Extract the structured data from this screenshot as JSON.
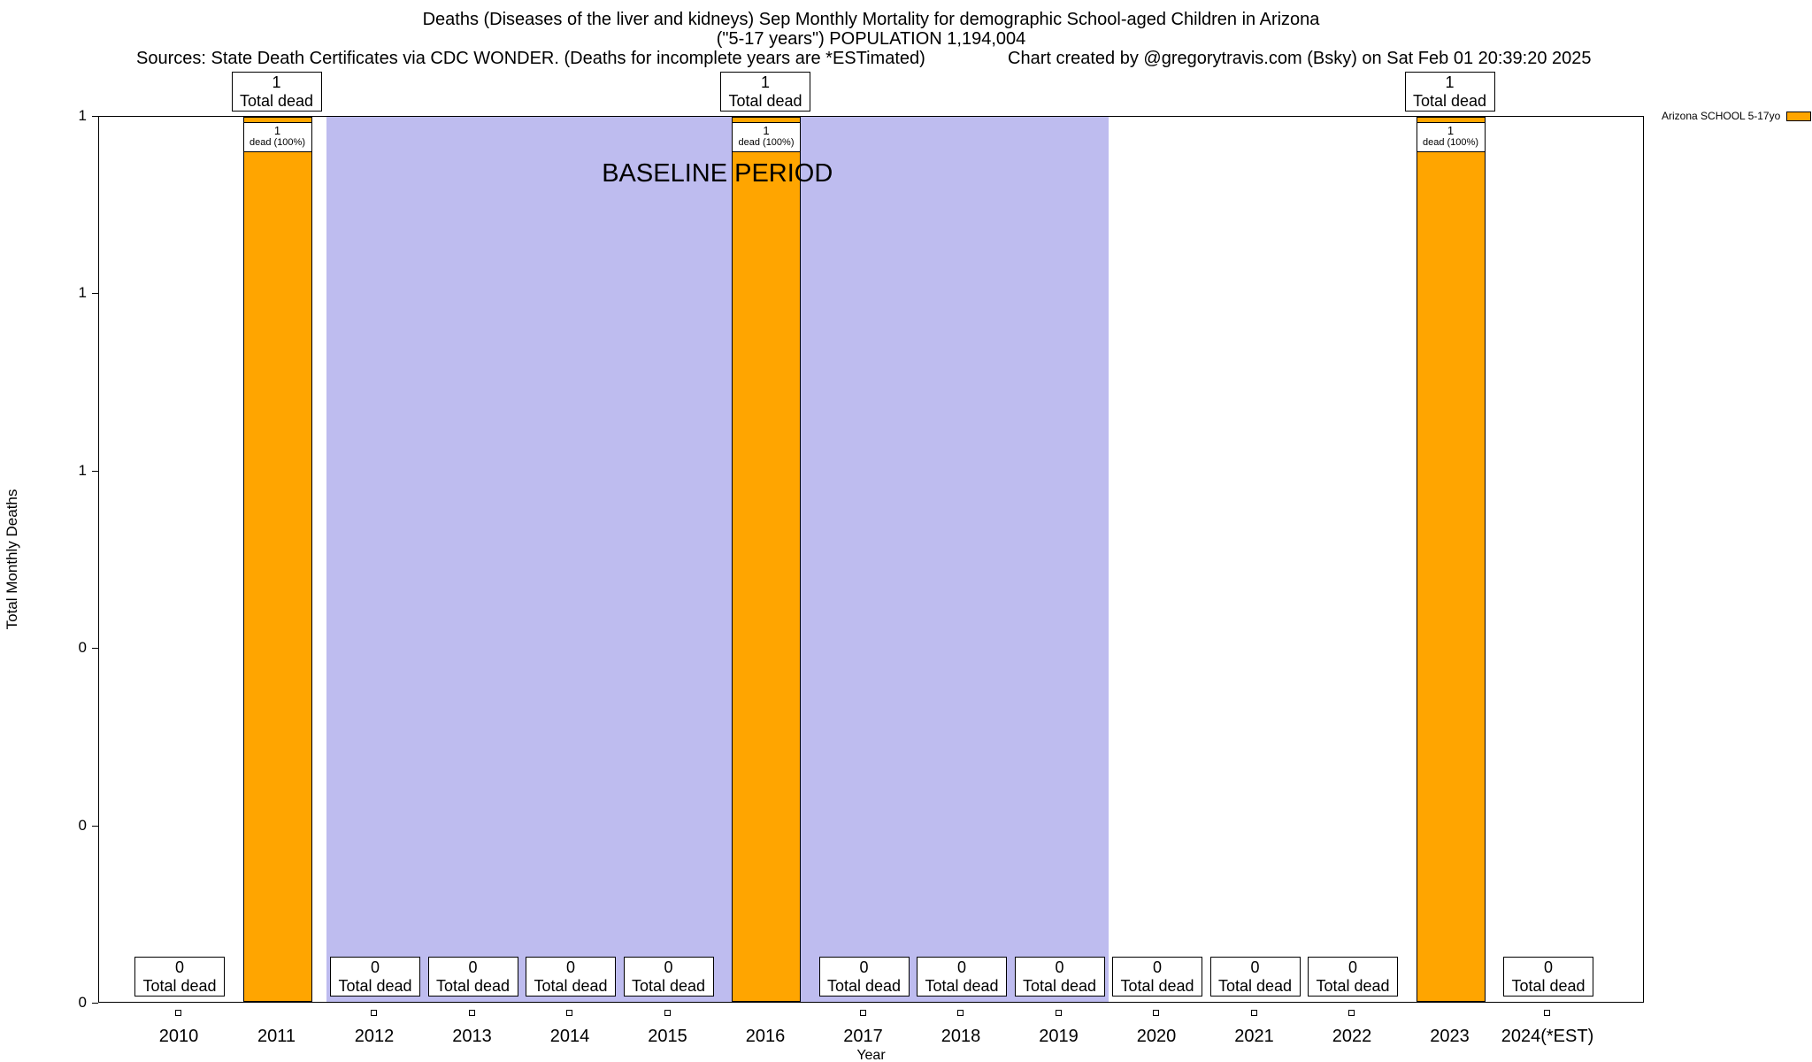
{
  "chart_data": {
    "type": "bar",
    "title": "Deaths (Diseases of the liver and kidneys) Sep Monthly Mortality for demographic School-aged Children in Arizona",
    "subtitle": "(\"5-17 years\") POPULATION 1,194,004",
    "sources_note": "Sources: State Death Certificates via CDC WONDER. (Deaths for incomplete years are *ESTimated)",
    "credit_note": "Chart created by @gregorytravis.com (Bsky) on Sat Feb 01 20:39:20 2025",
    "xlabel": "Year",
    "ylabel": "Total Monthly Deaths",
    "ylim": [
      0,
      1
    ],
    "y_tick_labels": [
      "1",
      "1",
      "1",
      "0",
      "0",
      "0"
    ],
    "grid": false,
    "legend": {
      "label": "Arizona SCHOOL 5-17yo",
      "color": "#FFA500",
      "position": "top-right"
    },
    "bar_color": "#FFA500",
    "baseline_band": {
      "label": "BASELINE PERIOD",
      "from_category": "2012",
      "to_category": "2019",
      "color": "#BEBCEF"
    },
    "categories": [
      "2010",
      "2011",
      "2012",
      "2013",
      "2014",
      "2015",
      "2016",
      "2017",
      "2018",
      "2019",
      "2020",
      "2021",
      "2022",
      "2023",
      "2024(*EST)"
    ],
    "values": [
      0,
      1,
      0,
      0,
      0,
      0,
      1,
      0,
      0,
      0,
      0,
      0,
      0,
      1,
      0
    ],
    "annotations": [
      {
        "category": "2010",
        "box": [
          "0",
          "Total dead"
        ]
      },
      {
        "category": "2011",
        "top_box": [
          "1",
          "Total dead"
        ],
        "bar_box": [
          "1",
          "dead (100%)"
        ]
      },
      {
        "category": "2012",
        "box": [
          "0",
          "Total dead"
        ]
      },
      {
        "category": "2013",
        "box": [
          "0",
          "Total dead"
        ]
      },
      {
        "category": "2014",
        "box": [
          "0",
          "Total dead"
        ]
      },
      {
        "category": "2015",
        "box": [
          "0",
          "Total dead"
        ]
      },
      {
        "category": "2016",
        "top_box": [
          "1",
          "Total dead"
        ],
        "bar_box": [
          "1",
          "dead (100%)"
        ]
      },
      {
        "category": "2017",
        "box": [
          "0",
          "Total dead"
        ]
      },
      {
        "category": "2018",
        "box": [
          "0",
          "Total dead"
        ]
      },
      {
        "category": "2019",
        "box": [
          "0",
          "Total dead"
        ]
      },
      {
        "category": "2020",
        "box": [
          "0",
          "Total dead"
        ]
      },
      {
        "category": "2021",
        "box": [
          "0",
          "Total dead"
        ]
      },
      {
        "category": "2022",
        "box": [
          "0",
          "Total dead"
        ]
      },
      {
        "category": "2023",
        "top_box": [
          "1",
          "Total dead"
        ],
        "bar_box": [
          "1",
          "dead (100%)"
        ]
      },
      {
        "category": "2024(*EST)",
        "box": [
          "0",
          "Total dead"
        ]
      }
    ]
  }
}
